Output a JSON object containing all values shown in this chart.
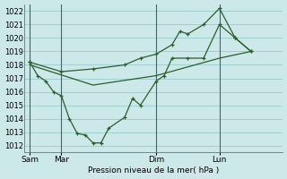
{
  "bg_color": "#cce8e8",
  "grid_color": "#99cccc",
  "line_color": "#2a5f2a",
  "ylabel": "Pression niveau de la mer( hPa )",
  "ylim": [
    1011.5,
    1022.5
  ],
  "yticks": [
    1012,
    1013,
    1014,
    1015,
    1016,
    1017,
    1018,
    1019,
    1020,
    1021,
    1022
  ],
  "xtick_labels": [
    "Sam",
    "Mar",
    "Dim",
    "Lun"
  ],
  "xtick_positions": [
    0,
    24,
    96,
    144
  ],
  "vline_positions": [
    0,
    24,
    96,
    144
  ],
  "xlim": [
    -4,
    192
  ],
  "series1_x": [
    0,
    6,
    12,
    18,
    24,
    30,
    36,
    42,
    48,
    54,
    60,
    72,
    78,
    84,
    96,
    102,
    108,
    120,
    132,
    144,
    156,
    168
  ],
  "series1_y": [
    1018.2,
    1017.2,
    1016.8,
    1016.0,
    1015.7,
    1014.0,
    1012.9,
    1012.8,
    1012.2,
    1012.2,
    1013.3,
    1014.1,
    1015.5,
    1015.0,
    1016.8,
    1017.2,
    1018.5,
    1018.5,
    1018.5,
    1021.0,
    1020.0,
    1019.0
  ],
  "series2_x": [
    0,
    24,
    48,
    72,
    84,
    96,
    108,
    114,
    120,
    132,
    144,
    156,
    168
  ],
  "series2_y": [
    1018.2,
    1017.5,
    1017.7,
    1018.0,
    1018.5,
    1018.8,
    1019.5,
    1020.5,
    1020.3,
    1021.0,
    1022.2,
    1020.0,
    1019.0
  ],
  "series3_x": [
    0,
    48,
    96,
    144,
    168
  ],
  "series3_y": [
    1018.0,
    1016.5,
    1017.2,
    1018.5,
    1019.0
  ]
}
